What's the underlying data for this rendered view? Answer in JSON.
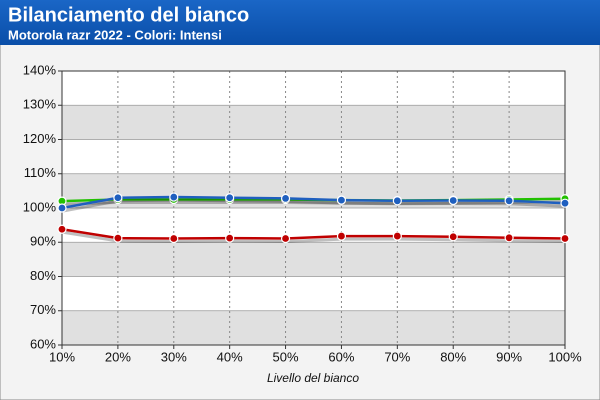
{
  "chart_data": {
    "type": "line",
    "title": "Bilanciamento del bianco",
    "subtitle": "Motorola razr 2022 - Colori: Intensi",
    "x_label": "Livello del bianco",
    "categories": [
      "10%",
      "20%",
      "30%",
      "40%",
      "50%",
      "60%",
      "70%",
      "80%",
      "90%",
      "100%"
    ],
    "series": [
      {
        "color": "#22c000",
        "values": [
          102,
          102.5,
          102.5,
          102.5,
          102.5,
          102.3,
          102.2,
          102.3,
          102.5,
          102.7
        ]
      },
      {
        "color": "#1f5fbf",
        "values": [
          100,
          103,
          103.2,
          103,
          102.8,
          102.3,
          102.1,
          102.2,
          102.1,
          101.4
        ]
      },
      {
        "color": "#c00000",
        "values": [
          93.8,
          91.2,
          91.1,
          91.2,
          91.1,
          91.8,
          91.8,
          91.6,
          91.3,
          91.1
        ]
      }
    ],
    "ylim": [
      60,
      140
    ],
    "yticks": [
      {
        "value": 60,
        "label": "60%"
      },
      {
        "value": 70,
        "label": "70%"
      },
      {
        "value": 80,
        "label": "80%"
      },
      {
        "value": 90,
        "label": "90%"
      },
      {
        "value": 100,
        "label": "100%"
      },
      {
        "value": 110,
        "label": "110%"
      },
      {
        "value": 120,
        "label": "120%"
      },
      {
        "value": 130,
        "label": "130%"
      },
      {
        "value": 140,
        "label": "140%"
      }
    ],
    "grid": true
  }
}
